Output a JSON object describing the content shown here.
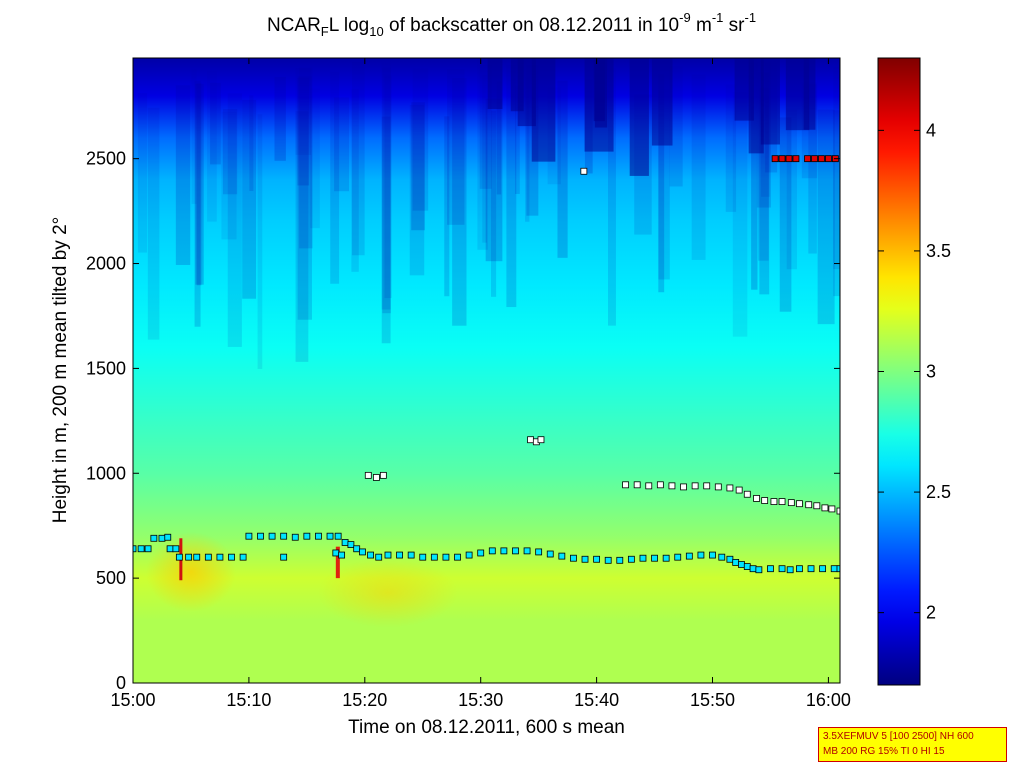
{
  "title": {
    "prefix": "NCAR",
    "sub1": "F",
    "mid": "L log",
    "sub2": "10",
    "rest": " of backscatter on 08.12.2011 in 10",
    "sup1": "-9",
    "unit1": " m",
    "sup2": "-1",
    "unit2": " sr",
    "sup3": "-1"
  },
  "note": {
    "line1": "3.5XEFMUV 5 [100 2500] NH 600",
    "line2": "MB 200 RG 15% TI 0 HI 15"
  },
  "chart_data": {
    "type": "heatmap",
    "xlabel": "Time on 08.12.2011, 600 s mean",
    "ylabel": "Height in m, 200 m mean tilted by 2°",
    "xlim": [
      0,
      61
    ],
    "ylim": [
      0,
      2980
    ],
    "x_ticks": [
      {
        "min": 0,
        "label": "15:00"
      },
      {
        "min": 10,
        "label": "15:10"
      },
      {
        "min": 20,
        "label": "15:20"
      },
      {
        "min": 30,
        "label": "15:30"
      },
      {
        "min": 40,
        "label": "15:40"
      },
      {
        "min": 50,
        "label": "15:50"
      },
      {
        "min": 60,
        "label": "16:00"
      }
    ],
    "y_ticks": [
      0,
      500,
      1000,
      1500,
      2000,
      2500
    ],
    "colorbar": {
      "range": [
        1.7,
        4.3
      ],
      "ticks": [
        2,
        2.5,
        3,
        3.5,
        4
      ],
      "colormap": "jet"
    },
    "background_profile": [
      {
        "height": 0,
        "value": 3.12
      },
      {
        "height": 300,
        "value": 3.12
      },
      {
        "height": 500,
        "value": 3.2
      },
      {
        "height": 700,
        "value": 3.05
      },
      {
        "height": 1000,
        "value": 2.9
      },
      {
        "height": 1300,
        "value": 2.8
      },
      {
        "height": 1600,
        "value": 2.7
      },
      {
        "height": 1900,
        "value": 2.62
      },
      {
        "height": 2200,
        "value": 2.55
      },
      {
        "height": 2400,
        "value": 2.48
      },
      {
        "height": 2600,
        "value": 2.3
      },
      {
        "height": 2800,
        "value": 1.95
      },
      {
        "height": 2980,
        "value": 1.8
      }
    ],
    "series": [
      {
        "marker": "white",
        "points": [
          [
            20.3,
            990
          ],
          [
            21.0,
            980
          ],
          [
            21.6,
            990
          ],
          [
            34.3,
            1160
          ],
          [
            34.8,
            1150
          ],
          [
            35.2,
            1160
          ],
          [
            38.9,
            2440
          ],
          [
            42.5,
            945
          ],
          [
            43.5,
            945
          ],
          [
            44.5,
            940
          ],
          [
            45.5,
            945
          ],
          [
            46.5,
            940
          ],
          [
            47.5,
            935
          ],
          [
            48.5,
            940
          ],
          [
            49.5,
            940
          ],
          [
            50.5,
            935
          ],
          [
            51.5,
            930
          ],
          [
            52.3,
            920
          ],
          [
            53.0,
            900
          ],
          [
            53.8,
            880
          ],
          [
            54.5,
            870
          ],
          [
            55.3,
            865
          ],
          [
            56.0,
            865
          ],
          [
            56.8,
            860
          ],
          [
            57.5,
            855
          ],
          [
            58.3,
            850
          ],
          [
            59.0,
            845
          ],
          [
            59.7,
            835
          ],
          [
            60.3,
            830
          ],
          [
            61.0,
            820
          ]
        ]
      },
      {
        "marker": "cyan",
        "points": [
          [
            0.0,
            640
          ],
          [
            0.7,
            640
          ],
          [
            1.3,
            640
          ],
          [
            1.8,
            690
          ],
          [
            2.5,
            690
          ],
          [
            3.0,
            695
          ],
          [
            3.2,
            640
          ],
          [
            3.7,
            640
          ],
          [
            4.0,
            600
          ],
          [
            4.8,
            600
          ],
          [
            5.5,
            600
          ],
          [
            6.5,
            600
          ],
          [
            7.5,
            600
          ],
          [
            8.5,
            600
          ],
          [
            9.5,
            600
          ],
          [
            10.0,
            700
          ],
          [
            11.0,
            700
          ],
          [
            12.0,
            700
          ],
          [
            13.0,
            700
          ],
          [
            14.0,
            695
          ],
          [
            15.0,
            700
          ],
          [
            16.0,
            700
          ],
          [
            17.0,
            700
          ],
          [
            17.7,
            700
          ],
          [
            13.0,
            600
          ],
          [
            17.5,
            620
          ],
          [
            18.0,
            610
          ],
          [
            18.3,
            670
          ],
          [
            18.8,
            660
          ],
          [
            19.3,
            640
          ],
          [
            19.8,
            625
          ],
          [
            20.5,
            610
          ],
          [
            21.2,
            600
          ],
          [
            22.0,
            610
          ],
          [
            23.0,
            610
          ],
          [
            24.0,
            610
          ],
          [
            25.0,
            600
          ],
          [
            26.0,
            600
          ],
          [
            27.0,
            600
          ],
          [
            28.0,
            600
          ],
          [
            29.0,
            610
          ],
          [
            30.0,
            620
          ],
          [
            31.0,
            630
          ],
          [
            32.0,
            630
          ],
          [
            33.0,
            630
          ],
          [
            34.0,
            630
          ],
          [
            35.0,
            625
          ],
          [
            36.0,
            615
          ],
          [
            37.0,
            605
          ],
          [
            38.0,
            595
          ],
          [
            39.0,
            590
          ],
          [
            40.0,
            590
          ],
          [
            41.0,
            585
          ],
          [
            42.0,
            585
          ],
          [
            43.0,
            590
          ],
          [
            44.0,
            595
          ],
          [
            45.0,
            595
          ],
          [
            46.0,
            595
          ],
          [
            47.0,
            600
          ],
          [
            48.0,
            605
          ],
          [
            49.0,
            610
          ],
          [
            50.0,
            610
          ],
          [
            50.8,
            600
          ],
          [
            51.5,
            590
          ],
          [
            52.0,
            575
          ],
          [
            52.5,
            565
          ],
          [
            53.0,
            555
          ],
          [
            53.5,
            545
          ],
          [
            54.0,
            540
          ],
          [
            55.0,
            545
          ],
          [
            56.0,
            545
          ],
          [
            56.7,
            540
          ],
          [
            57.5,
            545
          ],
          [
            58.5,
            545
          ],
          [
            59.5,
            545
          ],
          [
            60.5,
            545
          ],
          [
            61.0,
            545
          ]
        ]
      },
      {
        "marker": "red",
        "points": [
          [
            55.4,
            2500
          ],
          [
            56.0,
            2500
          ],
          [
            56.6,
            2500
          ],
          [
            57.2,
            2500
          ],
          [
            58.2,
            2500
          ],
          [
            58.8,
            2500
          ],
          [
            59.4,
            2500
          ],
          [
            60.0,
            2500
          ],
          [
            60.6,
            2500
          ]
        ]
      }
    ]
  }
}
